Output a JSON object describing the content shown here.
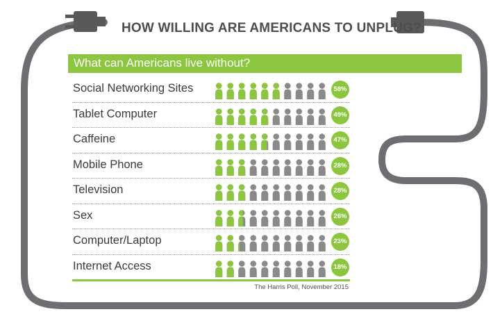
{
  "header": {
    "title": "HOW WILLING ARE AMERICANS TO UNPLUG?"
  },
  "banner": {
    "subtitle": "What can Americans live without?"
  },
  "source": "The Harris Poll, November 2015",
  "colors": {
    "green": "#8cc63f",
    "gray": "#8a8a8a",
    "cord": "#6d6e71",
    "plug": "#58595b"
  },
  "icons": [
    "plug-icon",
    "person-icon"
  ],
  "chart_data": {
    "type": "bar",
    "title": "HOW WILLING ARE AMERICANS TO UNPLUG?",
    "subtitle": "What can Americans live without?",
    "xlabel": "",
    "ylabel": "",
    "ylim": [
      0,
      100
    ],
    "unit": "%",
    "icons_per_row": 10,
    "categories": [
      "Social Networking Sites",
      "Tablet Computer",
      "Caffeine",
      "Mobile Phone",
      "Television",
      "Sex",
      "Computer/Laptop",
      "Internet Access"
    ],
    "values": [
      58,
      49,
      47,
      28,
      28,
      26,
      23,
      18
    ],
    "labels": [
      "58%",
      "49%",
      "47%",
      "28%",
      "28%",
      "26%",
      "23%",
      "18%"
    ]
  }
}
